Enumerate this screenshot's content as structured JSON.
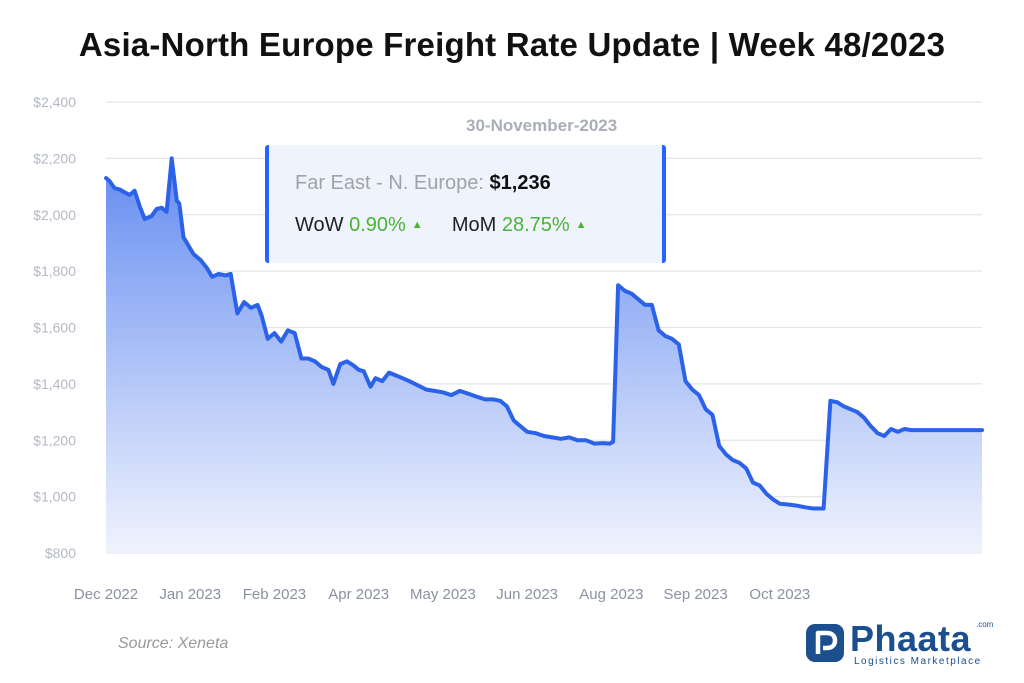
{
  "title": "Asia-North Europe Freight Rate Update | Week 48/2023",
  "source": "Source: Xeneta",
  "logo": {
    "name": "Phaata",
    "suffix": ".com",
    "tagline": "Logistics Marketplace"
  },
  "tooltip": {
    "date": "30-November-2023",
    "route_label": "Far East - N. Europe:",
    "route_value": "$1,236",
    "wow_label": "WoW",
    "wow_value": "0.90%",
    "mom_label": "MoM",
    "mom_value": "28.75%"
  },
  "colors": {
    "line": "#2b62e8",
    "area_top": "#5b85f0",
    "area_bottom": "#eef2fd",
    "grid": "#e4e6eb",
    "accent": "#2962ff",
    "up": "#4bb33a"
  },
  "chart_data": {
    "type": "area",
    "title": "Asia-North Europe Freight Rate Update | Week 48/2023",
    "xlabel": "",
    "ylabel": "",
    "ylim": [
      800,
      2400
    ],
    "yticks": [
      800,
      1000,
      1200,
      1400,
      1600,
      1800,
      2000,
      2200,
      2400
    ],
    "ytick_labels": [
      "$800",
      "$1,000",
      "$1,200",
      "$1,400",
      "$1,600",
      "$1,800",
      "$2,000",
      "$2,200",
      "$2,400"
    ],
    "xlim": [
      0,
      52
    ],
    "xticks": [
      0,
      5,
      10,
      15,
      20,
      25,
      30,
      35,
      40
    ],
    "xtick_labels": [
      "Dec 2022",
      "Jan 2023",
      "Feb 2023",
      "Apr 2023",
      "May 2023",
      "Jun 2023",
      "Aug 2023",
      "Sep 2023",
      "Oct 2023"
    ],
    "grid": true,
    "series": [
      {
        "name": "Far East - N. Europe",
        "x": [
          0,
          0.2,
          0.5,
          0.8,
          1.1,
          1.4,
          1.7,
          2.0,
          2.3,
          2.7,
          3.0,
          3.3,
          3.6,
          3.9,
          4.2,
          4.35,
          4.6,
          4.8,
          5.0,
          5.2,
          5.6,
          6.0,
          6.3,
          6.7,
          7.1,
          7.4,
          7.8,
          8.2,
          8.6,
          9.0,
          9.25,
          9.6,
          10.0,
          10.4,
          10.8,
          11.2,
          11.6,
          12.0,
          12.4,
          12.8,
          13.2,
          13.5,
          13.9,
          14.3,
          14.7,
          15.0,
          15.3,
          15.7,
          16.0,
          16.4,
          16.8,
          17.2,
          17.6,
          18.0,
          18.5,
          19.0,
          19.5,
          20.0,
          20.5,
          21.0,
          21.5,
          22.0,
          22.5,
          23.0,
          23.4,
          23.8,
          24.2,
          24.6,
          25.0,
          25.5,
          26.0,
          26.5,
          27.0,
          27.5,
          28.0,
          28.5,
          29.0,
          29.5,
          29.9,
          30.1,
          30.4,
          30.8,
          31.2,
          31.6,
          32.0,
          32.4,
          32.8,
          33.2,
          33.6,
          34.0,
          34.4,
          34.8,
          35.2,
          35.6,
          36.0,
          36.4,
          36.8,
          37.2,
          37.6,
          38.0,
          38.4,
          38.8,
          39.2,
          39.6,
          40.0,
          40.5,
          41.0,
          41.5,
          42.0,
          42.3,
          42.6,
          43.0,
          43.4,
          43.8,
          44.2,
          44.6,
          45.0,
          45.4,
          45.8,
          46.2,
          46.6,
          47.0,
          47.4,
          47.8,
          48.2,
          48.6,
          49.0,
          49.5,
          50.0,
          50.5,
          51.0,
          51.5,
          52.0
        ],
        "values": [
          2130,
          2120,
          2095,
          2090,
          2080,
          2070,
          2085,
          2030,
          1985,
          1995,
          2020,
          2025,
          2010,
          2200,
          2050,
          2040,
          1920,
          1900,
          1880,
          1860,
          1840,
          1810,
          1780,
          1790,
          1785,
          1790,
          1650,
          1690,
          1670,
          1680,
          1640,
          1560,
          1580,
          1550,
          1590,
          1580,
          1490,
          1490,
          1480,
          1460,
          1450,
          1400,
          1470,
          1480,
          1465,
          1450,
          1445,
          1390,
          1420,
          1410,
          1440,
          1430,
          1420,
          1410,
          1395,
          1380,
          1375,
          1370,
          1360,
          1375,
          1365,
          1355,
          1345,
          1345,
          1340,
          1320,
          1270,
          1250,
          1230,
          1225,
          1215,
          1210,
          1205,
          1210,
          1200,
          1200,
          1188,
          1190,
          1188,
          1195,
          1750,
          1730,
          1720,
          1700,
          1680,
          1680,
          1590,
          1570,
          1560,
          1540,
          1410,
          1380,
          1360,
          1310,
          1290,
          1180,
          1150,
          1130,
          1120,
          1100,
          1050,
          1040,
          1010,
          990,
          975,
          972,
          968,
          962,
          958,
          958,
          958,
          1340,
          1335,
          1320,
          1310,
          1300,
          1280,
          1250,
          1225,
          1215,
          1240,
          1230,
          1240,
          1236,
          1236,
          1236,
          1236,
          1236,
          1236,
          1236,
          1236,
          1236,
          1236
        ]
      }
    ]
  }
}
